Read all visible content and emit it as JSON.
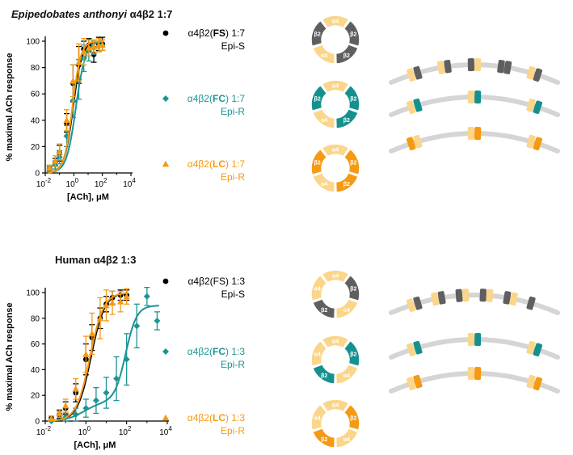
{
  "colors": {
    "fs": "#000000",
    "fc": "#1a9594",
    "lc": "#f59a12",
    "alpha4": "#fbd68a",
    "beta2_fs": "#5f5f5f",
    "beta2_fc": "#14918f",
    "beta2_lc": "#f59a12",
    "strand": "#d5d5d5"
  },
  "panels": [
    {
      "title_italic": "Epipedobates anthonyi",
      "title_rest": " α4β2 1:7",
      "legend": [
        {
          "line1_pre": "α4β2(",
          "line1_bold": "FS",
          "line1_post": ") 1:7",
          "line2": "Epi-S",
          "marker": "circle",
          "color_key": "fs"
        },
        {
          "line1_pre": "α4β2(",
          "line1_bold": "FC",
          "line1_post": ") 1:7",
          "line2": "Epi-R",
          "marker": "diamond",
          "color_key": "fc"
        },
        {
          "line1_pre": "α4β2(",
          "line1_bold": "LC",
          "line1_post": ") 1:7",
          "line2": "Epi-R",
          "marker": "triangle",
          "color_key": "lc"
        }
      ],
      "rings": [
        {
          "labels": [
            "α4",
            "β2",
            "β2",
            "α4",
            "β2"
          ]
        },
        {
          "labels": [
            "α4",
            "β2",
            "β2",
            "α4",
            "β2"
          ]
        },
        {
          "labels": [
            "α4",
            "β2",
            "β2",
            "α4",
            "β2"
          ]
        }
      ],
      "strands": [
        {
          "pattern": [
            "a",
            "b",
            "a",
            "b",
            "b",
            "a",
            "b",
            "b",
            "a",
            "b"
          ]
        },
        {
          "pattern": [
            "a",
            "b",
            "a",
            "b",
            "a",
            "b"
          ]
        },
        {
          "pattern": [
            "b",
            "a",
            "a",
            "b",
            "a",
            "b"
          ]
        }
      ]
    },
    {
      "title_italic": "",
      "title_rest": "Human α4β2 1:3",
      "legend": [
        {
          "line1_pre": "α4β2(FS) 1:3",
          "line1_bold": "",
          "line1_post": "",
          "line2": "Epi-S",
          "marker": "circle",
          "color_key": "fs"
        },
        {
          "line1_pre": "α4β2(",
          "line1_bold": "FC",
          "line1_post": ") 1:3",
          "line2": "Epi-R",
          "marker": "diamond",
          "color_key": "fc"
        },
        {
          "line1_pre": "α4β2(",
          "line1_bold": "LC",
          "line1_post": ") 1:3",
          "line2": "Epi-R",
          "marker": "triangle",
          "color_key": "lc"
        }
      ],
      "rings": [
        {
          "labels": [
            "α4",
            "β2",
            "α4",
            "β2",
            "α4"
          ]
        },
        {
          "labels": [
            "α4",
            "β2",
            "α4",
            "β2",
            "α4"
          ]
        },
        {
          "labels": [
            "α4",
            "β2",
            "α4",
            "β2",
            "α4"
          ]
        }
      ],
      "strands": [
        {
          "pattern": [
            "a",
            "b",
            "a",
            "b",
            "b",
            "a",
            "b",
            "a",
            "b",
            "a",
            "b"
          ]
        },
        {
          "pattern": [
            "a",
            "b",
            "a",
            "b",
            "a",
            "b"
          ]
        },
        {
          "pattern": [
            "a",
            "b",
            "a",
            "b",
            "a",
            "b"
          ]
        }
      ]
    }
  ],
  "chart_data": [
    {
      "type": "scatter",
      "title": "Epipedobates anthonyi α4β2 1:7",
      "xlabel": "[ACh], μM",
      "ylabel": "% maximal ACh response",
      "xscale": "log",
      "xlim_log10": [
        -2,
        4
      ],
      "ylim": [
        0,
        100
      ],
      "x_ticks": [
        {
          "base": "10",
          "exp": "-2"
        },
        {
          "base": "10",
          "exp": "0"
        },
        {
          "base": "10",
          "exp": "2"
        },
        {
          "base": "10",
          "exp": "4"
        }
      ],
      "y_ticks": [
        "0",
        "20",
        "40",
        "60",
        "80",
        "100"
      ],
      "series": [
        {
          "name": "α4β2(FS) 1:7",
          "color_key": "fs",
          "marker": "circle",
          "ec50_log10": -0.05,
          "hill": 1.4,
          "x_log10": [
            -1.7,
            -1.3,
            -1.0,
            -0.5,
            -0.05,
            0.35,
            0.7,
            1.05,
            1.4,
            1.75,
            2.0
          ],
          "y": [
            3,
            8,
            15,
            38,
            68,
            82,
            94,
            97,
            90,
            98,
            98
          ],
          "err": [
            2,
            3,
            6,
            7,
            14,
            14,
            6,
            5,
            6,
            5,
            5
          ]
        },
        {
          "name": "α4β2(FC) 1:7",
          "color_key": "fc",
          "marker": "diamond",
          "ec50_log10": 0.15,
          "hill": 1.3,
          "x_log10": [
            -1.7,
            -1.3,
            -1.0,
            -0.5,
            -0.05,
            0.35,
            0.7,
            1.05,
            1.4,
            1.75,
            2.0
          ],
          "y": [
            3,
            6,
            12,
            28,
            55,
            71,
            87,
            93,
            95,
            96,
            97
          ],
          "err": [
            2,
            3,
            5,
            8,
            13,
            15,
            10,
            8,
            5,
            4,
            4
          ]
        },
        {
          "name": "α4β2(LC) 1:7",
          "color_key": "lc",
          "marker": "triangle",
          "ec50_log10": -0.1,
          "hill": 1.5,
          "x_log10": [
            -1.7,
            -1.3,
            -1.0,
            -0.5,
            -0.05,
            0.35,
            0.7,
            1.05,
            1.4,
            1.75,
            2.0
          ],
          "y": [
            4,
            9,
            16,
            40,
            70,
            84,
            92,
            95,
            96,
            97,
            97
          ],
          "err": [
            2,
            4,
            6,
            8,
            12,
            14,
            10,
            6,
            5,
            5,
            4
          ]
        }
      ]
    },
    {
      "type": "scatter",
      "title": "Human α4β2 1:3",
      "xlabel": "[ACh], μM",
      "ylabel": "% maximal ACh response",
      "xscale": "log",
      "xlim_log10": [
        -2,
        4
      ],
      "ylim": [
        0,
        100
      ],
      "x_ticks": [
        {
          "base": "10",
          "exp": "-2"
        },
        {
          "base": "10",
          "exp": "0"
        },
        {
          "base": "10",
          "exp": "2"
        },
        {
          "base": "10",
          "exp": "4"
        }
      ],
      "y_ticks": [
        "0",
        "20",
        "40",
        "60",
        "80",
        "100"
      ],
      "series": [
        {
          "name": "α4β2(FS) 1:3",
          "color_key": "fs",
          "marker": "circle",
          "ec50_log10": 0.25,
          "hill": 1.3,
          "x_log10": [
            -1.7,
            -1.3,
            -1.0,
            -0.5,
            0.0,
            0.3,
            0.7,
            1.0,
            1.3,
            1.7,
            2.0
          ],
          "y": [
            2,
            5,
            10,
            22,
            48,
            65,
            80,
            91,
            96,
            98,
            98
          ],
          "err": [
            2,
            3,
            5,
            7,
            12,
            10,
            8,
            6,
            5,
            4,
            4
          ]
        },
        {
          "name": "α4β2(FC) 1:3",
          "color_key": "fc",
          "marker": "diamond",
          "ec50_log10": 1.95,
          "hill": 1.6,
          "floor": 15,
          "x_log10": [
            -1.7,
            -1.0,
            -0.5,
            0.0,
            0.5,
            1.0,
            1.5,
            2.0,
            2.5,
            3.0,
            3.5
          ],
          "y": [
            0,
            3,
            5,
            10,
            16,
            22,
            33,
            48,
            74,
            97,
            78
          ],
          "err": [
            2,
            3,
            5,
            7,
            10,
            12,
            17,
            20,
            17,
            7,
            7
          ]
        },
        {
          "name": "α4β2(LC) 1:3",
          "color_key": "lc",
          "marker": "triangle",
          "ec50_log10": 0.2,
          "hill": 1.3,
          "x_log10": [
            -1.7,
            -1.3,
            -1.0,
            -0.5,
            0.0,
            0.3,
            0.7,
            1.0,
            1.3,
            1.7,
            2.0
          ],
          "y": [
            2,
            6,
            12,
            25,
            52,
            68,
            80,
            90,
            92,
            93,
            97
          ],
          "err": [
            2,
            3,
            5,
            8,
            14,
            16,
            16,
            12,
            9,
            8,
            6
          ]
        }
      ]
    }
  ]
}
